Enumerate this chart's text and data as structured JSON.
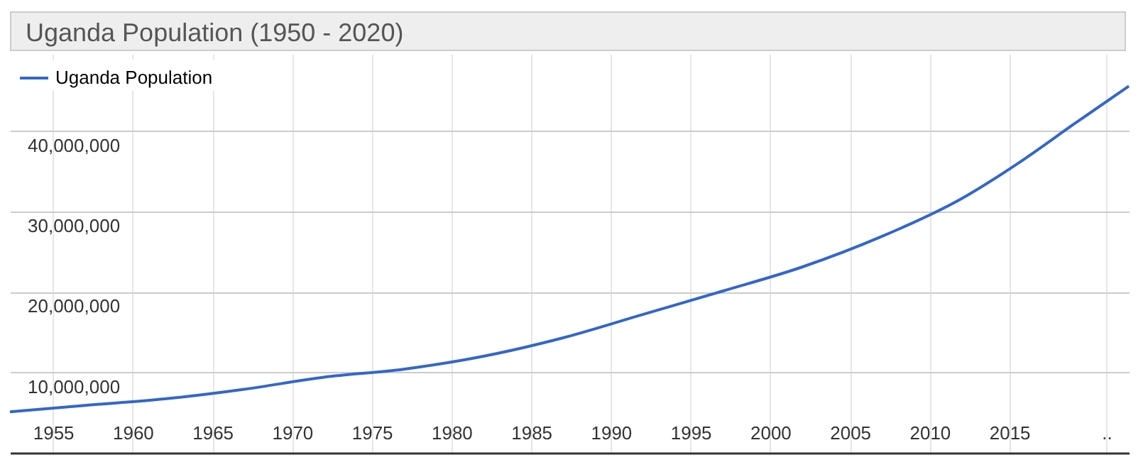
{
  "chart_data": {
    "type": "line",
    "title": "Uganda Population (1950 - 2020)",
    "x": [
      1952.3,
      1957,
      1962,
      1967,
      1972,
      1977,
      1982,
      1987,
      1992,
      1997,
      2002,
      2007,
      2012,
      2016,
      2019,
      2022.5
    ],
    "series": [
      {
        "name": "Uganda Population",
        "color": "#3366cc",
        "values": [
          5100000,
          5900000,
          6700000,
          7900000,
          9400000,
          10400000,
          12000000,
          14300000,
          17200000,
          20100000,
          23100000,
          26900000,
          31600000,
          36600000,
          40800000,
          45600000
        ]
      }
    ],
    "xlim": [
      1952.3,
      2022.5
    ],
    "xticks": [
      1955,
      1960,
      1965,
      1970,
      1975,
      1980,
      1985,
      1990,
      1995,
      2000,
      2005,
      2010,
      2015,
      {
        "value": 2021.1,
        "label": ".."
      }
    ],
    "ylim": [
      0,
      49600000
    ],
    "yticks": [
      {
        "value": 10000000,
        "label": "10,000,000"
      },
      {
        "value": 20000000,
        "label": "20,000,000"
      },
      {
        "value": 30000000,
        "label": "30,000,000"
      },
      {
        "value": 40000000,
        "label": "40,000,000"
      }
    ],
    "grid": true,
    "legend": "top left",
    "marker": "none",
    "line_style": "solid"
  }
}
